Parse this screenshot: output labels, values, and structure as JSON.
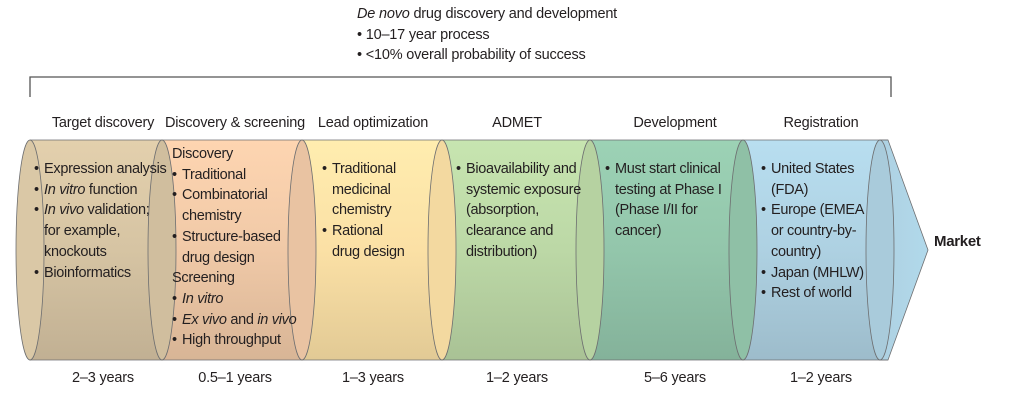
{
  "header": {
    "title_italic": "De novo",
    "title_rest": " drug discovery and development",
    "bullets": [
      "10–17 year process",
      "<10% overall probability of success"
    ]
  },
  "stages": [
    {
      "title": "Target discovery",
      "duration": "2–3 years",
      "color": "#d6c4a3",
      "lines": [
        {
          "text": "Expression analysis",
          "bullet": true
        },
        {
          "italic": "In vitro",
          "rest": " function",
          "bullet": true
        },
        {
          "italic": "In vivo",
          "rest": " validation;",
          "bullet": true
        },
        {
          "text": "for example,",
          "bullet": false
        },
        {
          "text": "knockouts",
          "bullet": false
        },
        {
          "text": "Bioinformatics",
          "bullet": true
        }
      ]
    },
    {
      "title": "Discovery & screening",
      "duration": "0.5–1 years",
      "color": "#f0c9a7",
      "lines": [
        {
          "text": "Discovery",
          "heading": true
        },
        {
          "text": "Traditional",
          "bullet": true
        },
        {
          "text": "Combinatorial",
          "bullet": true
        },
        {
          "text": "chemistry",
          "bullet": false
        },
        {
          "text": "Structure-based",
          "bullet": true
        },
        {
          "text": "drug design",
          "bullet": false
        },
        {
          "text": "Screening",
          "heading": true
        },
        {
          "italic": "In vitro",
          "rest": "",
          "bullet": true
        },
        {
          "italic": "Ex vivo",
          "rest": " and ",
          "italic2": "in vivo",
          "bullet": true
        },
        {
          "text": "High throughput",
          "bullet": true
        }
      ]
    },
    {
      "title": "Lead optimization",
      "duration": "1–3 years",
      "color": "#fbe0a5",
      "lines": [
        {
          "text": "Traditional",
          "bullet": true
        },
        {
          "text": "medicinal",
          "bullet": false
        },
        {
          "text": "chemistry",
          "bullet": false
        },
        {
          "text": "Rational",
          "bullet": true
        },
        {
          "text": "drug design",
          "bullet": false
        }
      ]
    },
    {
      "title": "ADMET",
      "duration": "1–2 years",
      "color": "#bcd8a6",
      "lines": [
        {
          "text": "Bioavailability and",
          "bullet": true
        },
        {
          "text": "systemic exposure",
          "bullet": false
        },
        {
          "text": "(absorption,",
          "bullet": false
        },
        {
          "text": "clearance and",
          "bullet": false
        },
        {
          "text": "distribution)",
          "bullet": false
        }
      ]
    },
    {
      "title": "Development",
      "duration": "5–6 years",
      "color": "#93c6ab",
      "lines": [
        {
          "text": "Must start clinical",
          "bullet": true
        },
        {
          "text": "testing at Phase I",
          "bullet": false
        },
        {
          "text": "(Phase I/II for",
          "bullet": false
        },
        {
          "text": "cancer)",
          "bullet": false
        }
      ]
    },
    {
      "title": "Registration",
      "duration": "1–2 years",
      "color": "#aed1e2",
      "lines": [
        {
          "text": "United States",
          "bullet": true
        },
        {
          "text": "(FDA)",
          "bullet": false
        },
        {
          "text": "Europe (EMEA",
          "bullet": true
        },
        {
          "text": "or country-by-",
          "bullet": false
        },
        {
          "text": "country)",
          "bullet": false
        },
        {
          "text": "Japan (MHLW)",
          "bullet": true
        },
        {
          "text": "Rest of world",
          "bullet": true
        }
      ]
    }
  ],
  "market_label": "Market",
  "colors": {
    "arrow_head": "#a9cfe0",
    "outline": "#6d6e70",
    "bracket": "#555555"
  }
}
